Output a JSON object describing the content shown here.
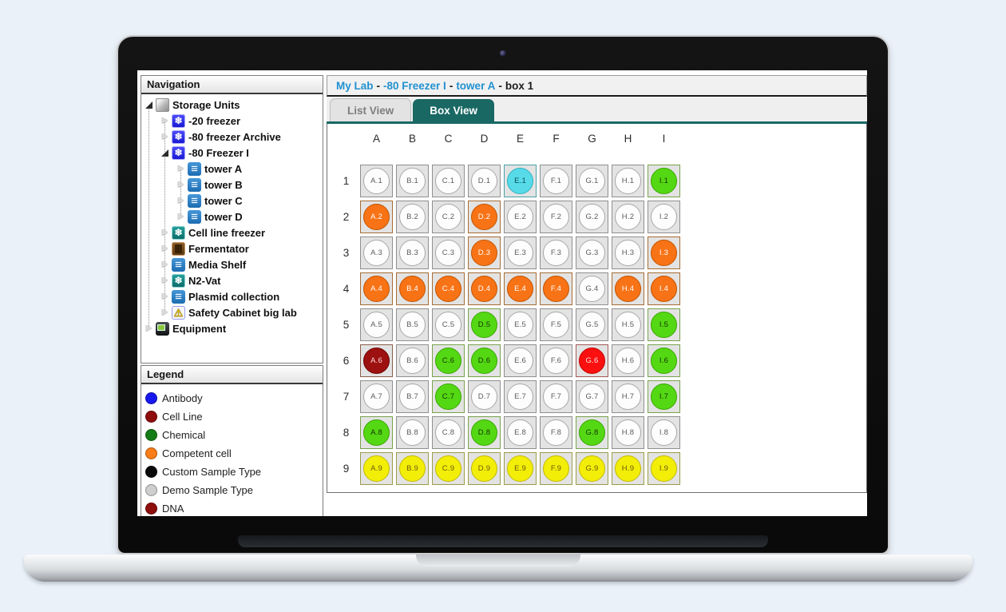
{
  "navigation": {
    "header": "Navigation",
    "tree": [
      {
        "label": "Storage Units",
        "depth": 0,
        "icon": "storage-cube",
        "state": "expanded"
      },
      {
        "label": "-20 freezer",
        "depth": 1,
        "icon": "freezer-blue",
        "state": "collapsed"
      },
      {
        "label": "-80 freezer Archive",
        "depth": 1,
        "icon": "freezer-blue",
        "state": "collapsed"
      },
      {
        "label": "-80 Freezer I",
        "depth": 1,
        "icon": "freezer-blue",
        "state": "expanded"
      },
      {
        "label": "tower A",
        "depth": 2,
        "icon": "tower-shelf",
        "state": "collapsed"
      },
      {
        "label": "tower B",
        "depth": 2,
        "icon": "tower-shelf",
        "state": "collapsed"
      },
      {
        "label": "tower C",
        "depth": 2,
        "icon": "tower-shelf",
        "state": "collapsed"
      },
      {
        "label": "tower D",
        "depth": 2,
        "icon": "tower-shelf",
        "state": "collapsed"
      },
      {
        "label": "Cell line freezer",
        "depth": 1,
        "icon": "freezer-teal",
        "state": "collapsed"
      },
      {
        "label": "Fermentator",
        "depth": 1,
        "icon": "fermentor",
        "state": "collapsed"
      },
      {
        "label": "Media Shelf",
        "depth": 1,
        "icon": "tower-shelf",
        "state": "collapsed"
      },
      {
        "label": "N2-Vat",
        "depth": 1,
        "icon": "freezer-teal",
        "state": "collapsed"
      },
      {
        "label": "Plasmid collection",
        "depth": 1,
        "icon": "tower-shelf",
        "state": "collapsed"
      },
      {
        "label": "Safety Cabinet big lab",
        "depth": 1,
        "icon": "safety",
        "state": "collapsed"
      },
      {
        "label": "Equipment",
        "depth": 0,
        "icon": "equipment",
        "state": "collapsed"
      }
    ]
  },
  "legend": {
    "header": "Legend",
    "items": [
      {
        "label": "Antibody",
        "color": "#1717ef"
      },
      {
        "label": "Cell Line",
        "color": "#8e0d0d"
      },
      {
        "label": "Chemical",
        "color": "#157c15"
      },
      {
        "label": "Competent cell",
        "color": "#fa7d18"
      },
      {
        "label": "Custom Sample Type",
        "color": "#0a0a0a"
      },
      {
        "label": "Demo Sample Type",
        "color": "#cecece"
      },
      {
        "label": "DNA",
        "color": "#8e0d0d"
      }
    ]
  },
  "breadcrumb": {
    "separator": " - ",
    "segments": [
      {
        "text": "My Lab",
        "link": true
      },
      {
        "text": "-80 Freezer I",
        "link": true
      },
      {
        "text": "tower A",
        "link": true
      },
      {
        "text": "box 1",
        "link": false
      }
    ]
  },
  "tabs": [
    {
      "label": "List View",
      "active": false
    },
    {
      "label": "Box View",
      "active": true
    }
  ],
  "theme": {
    "accent_teal": "#1a6864",
    "link_blue": "#2191d0"
  },
  "box_grid": {
    "columns": [
      "A",
      "B",
      "C",
      "D",
      "E",
      "F",
      "G",
      "H",
      "I"
    ],
    "row_numbers": [
      "1",
      "2",
      "3",
      "4",
      "5",
      "6",
      "7",
      "8",
      "9"
    ],
    "well_colors": {
      "empty": {
        "fill": "#fdfdfd",
        "border": "#a8a8a8",
        "text": "#5c5c5c",
        "square_border": "#8f8f8f"
      },
      "orange": {
        "fill": "#f87316",
        "border": "#c25400",
        "text": "#ffffff",
        "square_border": "#a56c33"
      },
      "green": {
        "fill": "#54d813",
        "border": "#3aa504",
        "text": "#123300",
        "square_border": "#77a24c"
      },
      "yellow": {
        "fill": "#f2ee08",
        "border": "#c2ba00",
        "text": "#6e5a08",
        "square_border": "#9c9c4a"
      },
      "cyan": {
        "fill": "#57dbe8",
        "border": "#2fb0c2",
        "text": "#0a4e57",
        "square_border": "#4aa0a8"
      },
      "dark-red": {
        "fill": "#9d1111",
        "border": "#6d0404",
        "text": "#ffd8d8",
        "square_border": "#8a5c48"
      },
      "red": {
        "fill": "#fb0f0f",
        "border": "#c40000",
        "text": "#ffe3e3",
        "square_border": "#a05858"
      }
    },
    "rows": [
      {
        "number": "1",
        "cells": [
          {
            "label": "A.1",
            "type": "empty"
          },
          {
            "label": "B.1",
            "type": "empty"
          },
          {
            "label": "C.1",
            "type": "empty"
          },
          {
            "label": "D.1",
            "type": "empty"
          },
          {
            "label": "E.1",
            "type": "cyan"
          },
          {
            "label": "F.1",
            "type": "empty"
          },
          {
            "label": "G.1",
            "type": "empty"
          },
          {
            "label": "H.1",
            "type": "empty"
          },
          {
            "label": "I.1",
            "type": "green"
          }
        ]
      },
      {
        "number": "2",
        "cells": [
          {
            "label": "A.2",
            "type": "orange"
          },
          {
            "label": "B.2",
            "type": "empty"
          },
          {
            "label": "C.2",
            "type": "empty"
          },
          {
            "label": "D.2",
            "type": "orange"
          },
          {
            "label": "E.2",
            "type": "empty"
          },
          {
            "label": "F.2",
            "type": "empty"
          },
          {
            "label": "G.2",
            "type": "empty"
          },
          {
            "label": "H.2",
            "type": "empty"
          },
          {
            "label": "I.2",
            "type": "empty"
          }
        ]
      },
      {
        "number": "3",
        "cells": [
          {
            "label": "A.3",
            "type": "empty"
          },
          {
            "label": "B.3",
            "type": "empty"
          },
          {
            "label": "C.3",
            "type": "empty"
          },
          {
            "label": "D.3",
            "type": "orange"
          },
          {
            "label": "E.3",
            "type": "empty"
          },
          {
            "label": "F.3",
            "type": "empty"
          },
          {
            "label": "G.3",
            "type": "empty"
          },
          {
            "label": "H.3",
            "type": "empty"
          },
          {
            "label": "I.3",
            "type": "orange"
          }
        ]
      },
      {
        "number": "4",
        "cells": [
          {
            "label": "A.4",
            "type": "orange"
          },
          {
            "label": "B.4",
            "type": "orange"
          },
          {
            "label": "C.4",
            "type": "orange"
          },
          {
            "label": "D.4",
            "type": "orange"
          },
          {
            "label": "E.4",
            "type": "orange"
          },
          {
            "label": "F.4",
            "type": "orange"
          },
          {
            "label": "G.4",
            "type": "empty"
          },
          {
            "label": "H.4",
            "type": "orange"
          },
          {
            "label": "I.4",
            "type": "orange"
          }
        ]
      },
      {
        "number": "5",
        "cells": [
          {
            "label": "A.5",
            "type": "empty"
          },
          {
            "label": "B.5",
            "type": "empty"
          },
          {
            "label": "C.5",
            "type": "empty"
          },
          {
            "label": "D.5",
            "type": "green"
          },
          {
            "label": "E.5",
            "type": "empty"
          },
          {
            "label": "F.5",
            "type": "empty"
          },
          {
            "label": "G.5",
            "type": "empty"
          },
          {
            "label": "H.5",
            "type": "empty"
          },
          {
            "label": "I.5",
            "type": "green"
          }
        ]
      },
      {
        "number": "6",
        "cells": [
          {
            "label": "A.6",
            "type": "dark-red"
          },
          {
            "label": "B.6",
            "type": "empty"
          },
          {
            "label": "C.6",
            "type": "green"
          },
          {
            "label": "D.6",
            "type": "green"
          },
          {
            "label": "E.6",
            "type": "empty"
          },
          {
            "label": "F.6",
            "type": "empty"
          },
          {
            "label": "G.6",
            "type": "red"
          },
          {
            "label": "H.6",
            "type": "empty"
          },
          {
            "label": "I.6",
            "type": "green"
          }
        ]
      },
      {
        "number": "7",
        "cells": [
          {
            "label": "A.7",
            "type": "empty"
          },
          {
            "label": "B.7",
            "type": "empty"
          },
          {
            "label": "C.7",
            "type": "green"
          },
          {
            "label": "D.7",
            "type": "empty"
          },
          {
            "label": "E.7",
            "type": "empty"
          },
          {
            "label": "F.7",
            "type": "empty"
          },
          {
            "label": "G.7",
            "type": "empty"
          },
          {
            "label": "H.7",
            "type": "empty"
          },
          {
            "label": "I.7",
            "type": "green"
          }
        ]
      },
      {
        "number": "8",
        "cells": [
          {
            "label": "A.8",
            "type": "green"
          },
          {
            "label": "B.8",
            "type": "empty"
          },
          {
            "label": "C.8",
            "type": "empty"
          },
          {
            "label": "D.8",
            "type": "green"
          },
          {
            "label": "E.8",
            "type": "empty"
          },
          {
            "label": "F.8",
            "type": "empty"
          },
          {
            "label": "G.8",
            "type": "green"
          },
          {
            "label": "H.8",
            "type": "empty"
          },
          {
            "label": "I.8",
            "type": "empty"
          }
        ]
      },
      {
        "number": "9",
        "cells": [
          {
            "label": "A.9",
            "type": "yellow"
          },
          {
            "label": "B.9",
            "type": "yellow"
          },
          {
            "label": "C.9",
            "type": "yellow"
          },
          {
            "label": "D.9",
            "type": "yellow"
          },
          {
            "label": "E.9",
            "type": "yellow"
          },
          {
            "label": "F.9",
            "type": "yellow"
          },
          {
            "label": "G.9",
            "type": "yellow"
          },
          {
            "label": "H.9",
            "type": "yellow"
          },
          {
            "label": "I.9",
            "type": "yellow"
          }
        ]
      }
    ]
  }
}
